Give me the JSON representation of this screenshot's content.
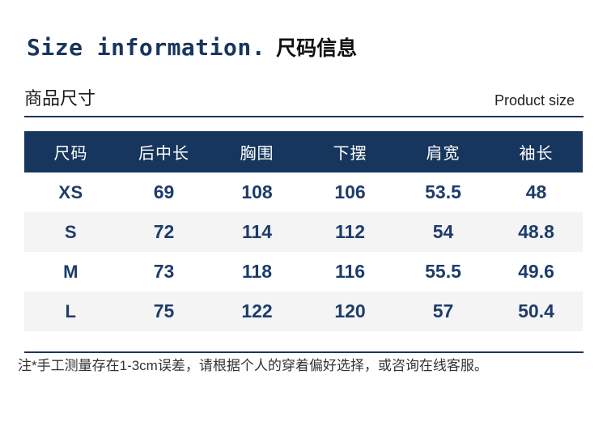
{
  "title": {
    "en": "Size information.",
    "zh": "尺码信息"
  },
  "section": {
    "label_zh": "商品尺寸",
    "label_en": "Product size"
  },
  "chart_data": {
    "type": "table",
    "title": "Size information. 尺码信息",
    "columns": [
      "尺码",
      "后中长",
      "胸围",
      "下摆",
      "肩宽",
      "袖长"
    ],
    "rows": [
      [
        "XS",
        "69",
        "108",
        "106",
        "53.5",
        "48"
      ],
      [
        "S",
        "72",
        "114",
        "112",
        "54",
        "48.8"
      ],
      [
        "M",
        "73",
        "118",
        "116",
        "55.5",
        "49.6"
      ],
      [
        "L",
        "75",
        "122",
        "120",
        "57",
        "50.4"
      ]
    ]
  },
  "note": "注*手工测量存在1-3cm误差，请根据个人的穿着偏好选择，或咨询在线客服。",
  "colors": {
    "navy": "#17365d",
    "table_text": "#1d3c6a",
    "row_alt_bg": "#f4f4f5",
    "note_text": "#333333"
  }
}
